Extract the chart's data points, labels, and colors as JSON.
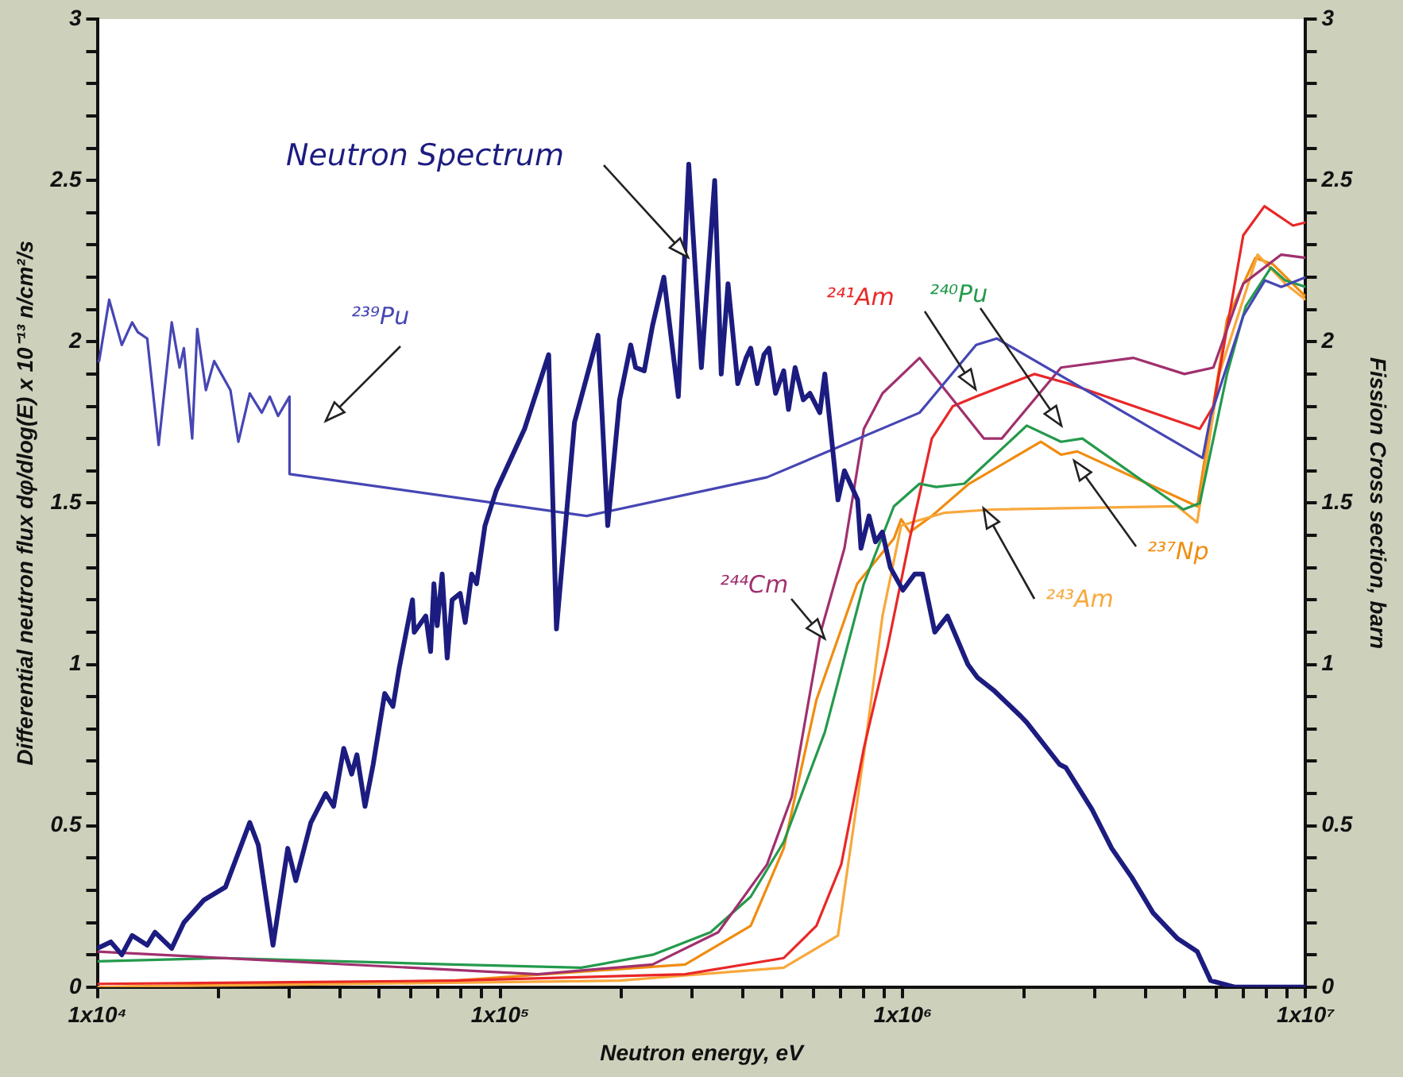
{
  "chart_data": {
    "type": "line",
    "xlabel": "Neutron energy, eV",
    "ylabel": "Differential neutron flux dφ/dlog(E) x 10⁻¹³ n/cm²/s",
    "y2label": "Fission Cross section, barn",
    "log": "x",
    "grid": false,
    "legend": false,
    "marker": "none",
    "xlim": [
      10000,
      10000000
    ],
    "xticks": [
      {
        "value": 10000,
        "label": "1x10⁴"
      },
      {
        "value": 20000,
        "label": null
      },
      {
        "value": 30000,
        "label": null
      },
      {
        "value": 40000,
        "label": null
      },
      {
        "value": 50000,
        "label": null
      },
      {
        "value": 60000,
        "label": null
      },
      {
        "value": 70000,
        "label": null
      },
      {
        "value": 80000,
        "label": null
      },
      {
        "value": 90000,
        "label": null
      },
      {
        "value": 100000,
        "label": "1x10⁵"
      },
      {
        "value": 200000,
        "label": null
      },
      {
        "value": 300000,
        "label": null
      },
      {
        "value": 400000,
        "label": null
      },
      {
        "value": 500000,
        "label": null
      },
      {
        "value": 600000,
        "label": null
      },
      {
        "value": 700000,
        "label": null
      },
      {
        "value": 800000,
        "label": null
      },
      {
        "value": 900000,
        "label": null
      },
      {
        "value": 1000000,
        "label": "1x10⁶"
      },
      {
        "value": 2000000,
        "label": null
      },
      {
        "value": 3000000,
        "label": null
      },
      {
        "value": 4000000,
        "label": null
      },
      {
        "value": 5000000,
        "label": null
      },
      {
        "value": 6000000,
        "label": null
      },
      {
        "value": 7000000,
        "label": null
      },
      {
        "value": 8000000,
        "label": null
      },
      {
        "value": 9000000,
        "label": null
      },
      {
        "value": 10000000,
        "label": "1x10⁷"
      }
    ],
    "ylim": [
      0,
      3
    ],
    "yticks": [
      0,
      {
        "value": 0.1,
        "label": null
      },
      {
        "value": 0.2,
        "label": null
      },
      {
        "value": 0.3,
        "label": null
      },
      {
        "value": 0.4,
        "label": null
      },
      0.5,
      {
        "value": 0.6,
        "label": null
      },
      {
        "value": 0.7,
        "label": null
      },
      {
        "value": 0.8,
        "label": null
      },
      {
        "value": 0.9,
        "label": null
      },
      1,
      {
        "value": 1.1,
        "label": null
      },
      {
        "value": 1.2,
        "label": null
      },
      {
        "value": 1.3,
        "label": null
      },
      {
        "value": 1.4,
        "label": null
      },
      1.5,
      {
        "value": 1.6,
        "label": null
      },
      {
        "value": 1.7,
        "label": null
      },
      {
        "value": 1.8,
        "label": null
      },
      {
        "value": 1.9,
        "label": null
      },
      2,
      {
        "value": 2.1,
        "label": null
      },
      {
        "value": 2.2,
        "label": null
      },
      {
        "value": 2.3,
        "label": null
      },
      {
        "value": 2.4,
        "label": null
      },
      2.5,
      {
        "value": 2.6,
        "label": null
      },
      {
        "value": 2.7,
        "label": null
      },
      {
        "value": 2.8,
        "label": null
      },
      {
        "value": 2.9,
        "label": null
      },
      3
    ],
    "y2lim": [
      0,
      3
    ],
    "y2ticks": [
      0,
      {
        "value": 0.1,
        "label": null
      },
      {
        "value": 0.2,
        "label": null
      },
      {
        "value": 0.3,
        "label": null
      },
      {
        "value": 0.4,
        "label": null
      },
      0.5,
      {
        "value": 0.6,
        "label": null
      },
      {
        "value": 0.7,
        "label": null
      },
      {
        "value": 0.8,
        "label": null
      },
      {
        "value": 0.9,
        "label": null
      },
      1,
      {
        "value": 1.1,
        "label": null
      },
      {
        "value": 1.2,
        "label": null
      },
      {
        "value": 1.3,
        "label": null
      },
      {
        "value": 1.4,
        "label": null
      },
      1.5,
      {
        "value": 1.6,
        "label": null
      },
      {
        "value": 1.7,
        "label": null
      },
      {
        "value": 1.8,
        "label": null
      },
      {
        "value": 1.9,
        "label": null
      },
      2,
      {
        "value": 2.1,
        "label": null
      },
      {
        "value": 2.2,
        "label": null
      },
      {
        "value": 2.3,
        "label": null
      },
      {
        "value": 2.4,
        "label": null
      },
      2.5,
      {
        "value": 2.6,
        "label": null
      },
      {
        "value": 2.7,
        "label": null
      },
      {
        "value": 2.8,
        "label": null
      },
      {
        "value": 2.9,
        "label": null
      },
      3
    ],
    "series": [
      {
        "name": "Neutron Spectrum",
        "color": "#1c1c80",
        "axis": "y",
        "x": [
          10000,
          10800,
          11500,
          12200,
          13300,
          13900,
          15300,
          16400,
          18400,
          20800,
          23900,
          25100,
          27300,
          29700,
          31100,
          33900,
          36900,
          38600,
          40900,
          42800,
          44100,
          46200,
          48400,
          51700,
          54200,
          56200,
          60600,
          61200,
          65400,
          67200,
          68500,
          69800,
          71800,
          73900,
          76000,
          79600,
          81900,
          85000,
          87400,
          91700,
          97900,
          115000,
          132000,
          138000,
          153000,
          175000,
          185000,
          198000,
          211000,
          217000,
          228000,
          239000,
          255000,
          277000,
          294000,
          316000,
          341000,
          354000,
          368000,
          389000,
          408000,
          419000,
          435000,
          452000,
          465000,
          483000,
          506000,
          520000,
          540000,
          566000,
          588000,
          622000,
          640000,
          690000,
          716000,
          772000,
          787000,
          824000,
          855000,
          889000,
          931000,
          1000000,
          1070000,
          1120000,
          1200000,
          1290000,
          1450000,
          1530000,
          1680000,
          1960000,
          2030000,
          2450000,
          2540000,
          2950000,
          3300000,
          3700000,
          4180000,
          4810000,
          5380000,
          5810000,
          6680000,
          10000000
        ],
        "values": [
          0.12,
          0.14,
          0.1,
          0.16,
          0.13,
          0.17,
          0.12,
          0.2,
          0.27,
          0.31,
          0.51,
          0.44,
          0.13,
          0.43,
          0.33,
          0.51,
          0.6,
          0.56,
          0.74,
          0.66,
          0.72,
          0.56,
          0.69,
          0.91,
          0.87,
          0.99,
          1.2,
          1.1,
          1.15,
          1.04,
          1.25,
          1.12,
          1.28,
          1.02,
          1.2,
          1.22,
          1.13,
          1.28,
          1.25,
          1.43,
          1.54,
          1.73,
          1.96,
          1.11,
          1.75,
          2.02,
          1.43,
          1.82,
          1.99,
          1.92,
          1.91,
          2.05,
          2.2,
          1.83,
          2.55,
          1.92,
          2.5,
          1.9,
          2.18,
          1.87,
          1.95,
          1.98,
          1.87,
          1.96,
          1.98,
          1.84,
          1.91,
          1.79,
          1.92,
          1.82,
          1.84,
          1.78,
          1.9,
          1.51,
          1.6,
          1.51,
          1.36,
          1.46,
          1.38,
          1.41,
          1.3,
          1.23,
          1.28,
          1.28,
          1.1,
          1.15,
          1,
          0.96,
          0.92,
          0.84,
          0.82,
          0.69,
          0.68,
          0.55,
          0.43,
          0.34,
          0.23,
          0.15,
          0.11,
          0.02,
          0,
          0
        ]
      },
      {
        "name": "²³⁹Pu",
        "color": "#4646b4",
        "axis": "y2",
        "x": [
          10000,
          10100,
          10700,
          11500,
          12200,
          12600,
          13300,
          14200,
          15300,
          16000,
          16400,
          17200,
          17700,
          18600,
          19500,
          21400,
          22400,
          23900,
          25600,
          26800,
          28100,
          30000,
          30000,
          164000,
          460000,
          1100000,
          1520000,
          1710000,
          5550000,
          5810000,
          7000000,
          7920000,
          8700000,
          10000000
        ],
        "values": [
          1.94,
          1.94,
          2.13,
          1.99,
          2.06,
          2.03,
          2.01,
          1.68,
          2.06,
          1.92,
          1.98,
          1.7,
          2.04,
          1.85,
          1.94,
          1.85,
          1.69,
          1.84,
          1.78,
          1.83,
          1.77,
          1.83,
          1.59,
          1.46,
          1.58,
          1.78,
          1.99,
          2.01,
          1.64,
          1.77,
          2.08,
          2.19,
          2.17,
          2.2
        ]
      },
      {
        "name": "²⁴⁴Cm",
        "color": "#a0306e",
        "axis": "y2",
        "x": [
          10000,
          124000,
          239000,
          348000,
          460000,
          530000,
          625000,
          716000,
          800000,
          890000,
          1100000,
          1590000,
          1760000,
          2470000,
          3730000,
          5000000,
          5900000,
          7000000,
          8700000,
          10000000
        ],
        "values": [
          0.11,
          0.04,
          0.07,
          0.17,
          0.38,
          0.59,
          1.1,
          1.36,
          1.73,
          1.84,
          1.95,
          1.7,
          1.7,
          1.92,
          1.95,
          1.9,
          1.92,
          2.18,
          2.27,
          2.26
        ]
      },
      {
        "name": "²⁴⁰Pu",
        "color": "#249a4c",
        "axis": "y2",
        "x": [
          10000,
          20800,
          77000,
          159000,
          239000,
          333000,
          419000,
          506000,
          640000,
          800000,
          950000,
          1100000,
          1210000,
          1420000,
          2030000,
          2470000,
          2790000,
          4970000,
          5460000,
          6380000,
          7100000,
          8200000,
          8900000,
          10000000
        ],
        "values": [
          0.08,
          0.09,
          0.07,
          0.06,
          0.1,
          0.17,
          0.28,
          0.45,
          0.79,
          1.25,
          1.49,
          1.56,
          1.55,
          1.56,
          1.74,
          1.69,
          1.7,
          1.48,
          1.5,
          1.9,
          2.11,
          2.23,
          2.19,
          2.17
        ]
      },
      {
        "name": "²⁴¹Am",
        "color": "#e82828",
        "axis": "y2",
        "x": [
          10000,
          77000,
          288000,
          506000,
          610000,
          703000,
          800000,
          915000,
          1040000,
          1180000,
          1330000,
          1520000,
          2120000,
          2580000,
          5460000,
          5900000,
          7000000,
          7900000,
          9300000,
          10000000
        ],
        "values": [
          0.01,
          0.02,
          0.04,
          0.09,
          0.19,
          0.38,
          0.74,
          1.05,
          1.39,
          1.7,
          1.8,
          1.83,
          1.9,
          1.87,
          1.73,
          1.8,
          2.33,
          2.42,
          2.36,
          2.37
        ]
      },
      {
        "name": "²⁴³Am",
        "color": "#f8a83c",
        "axis": "y2",
        "x": [
          10000,
          198000,
          506000,
          690000,
          800000,
          890000,
          990000,
          1270000,
          1670000,
          4800000,
          5380000,
          6100000,
          7600000,
          8900000,
          10000000
        ],
        "values": [
          0,
          0.02,
          0.06,
          0.16,
          0.72,
          1.15,
          1.43,
          1.47,
          1.48,
          1.49,
          1.44,
          1.9,
          2.27,
          2.18,
          2.13
        ]
      },
      {
        "name": "²³⁷Np",
        "color": "#f08c10",
        "axis": "y2",
        "x": [
          10000,
          77000,
          288000,
          419000,
          506000,
          610000,
          770000,
          950000,
          990000,
          1040000,
          1180000,
          1460000,
          2200000,
          2470000,
          2710000,
          5380000,
          6380000,
          7500000,
          8300000,
          10000000
        ],
        "values": [
          0,
          0.02,
          0.07,
          0.19,
          0.43,
          0.89,
          1.25,
          1.39,
          1.45,
          1.41,
          1.46,
          1.56,
          1.69,
          1.65,
          1.66,
          1.49,
          2.07,
          2.26,
          2.24,
          2.14
        ]
      }
    ]
  }
}
